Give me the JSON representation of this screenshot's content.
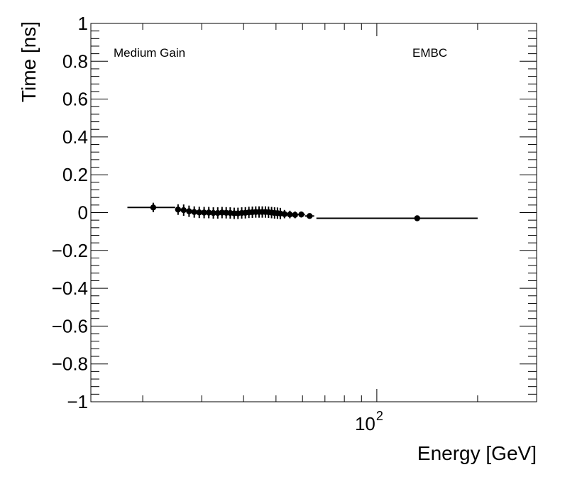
{
  "chart_data": {
    "type": "scatter",
    "title": "",
    "xlabel": "Energy [GeV]",
    "ylabel": "Time [ns]",
    "xscale": "log",
    "xlim": [
      14,
      300
    ],
    "ylim": [
      -1,
      1
    ],
    "y_ticks": [
      1,
      0.8,
      0.6,
      0.4,
      0.2,
      0,
      -0.2,
      -0.4,
      -0.6,
      -0.8,
      -1
    ],
    "y_tick_labels": [
      "1",
      "0.8",
      "0.6",
      "0.4",
      "0.2",
      "0",
      "−0.2",
      "−0.4",
      "−0.6",
      "−0.8",
      "−1"
    ],
    "x_tick_labels": [
      {
        "value": 100,
        "base": "10",
        "exponent": "2"
      }
    ],
    "annotations": {
      "left": "Medium Gain",
      "right": "EMBC"
    },
    "marker_color": "#000000",
    "points": [
      {
        "x": 21.5,
        "y": 0.027,
        "xlo": 18.0,
        "xhi": 25.0,
        "yerr": 0.025
      },
      {
        "x": 25.5,
        "y": 0.016,
        "xlo": 25.0,
        "xhi": 26.0,
        "yerr": 0.028
      },
      {
        "x": 26.5,
        "y": 0.013,
        "xlo": 26.0,
        "xhi": 27.0,
        "yerr": 0.03
      },
      {
        "x": 27.5,
        "y": 0.007,
        "xlo": 27.0,
        "xhi": 28.0,
        "yerr": 0.03
      },
      {
        "x": 28.5,
        "y": 0.003,
        "xlo": 28.0,
        "xhi": 29.0,
        "yerr": 0.03
      },
      {
        "x": 29.5,
        "y": 0.001,
        "xlo": 29.0,
        "xhi": 30.0,
        "yerr": 0.03
      },
      {
        "x": 30.5,
        "y": 0.0,
        "xlo": 30.0,
        "xhi": 31.0,
        "yerr": 0.03
      },
      {
        "x": 31.5,
        "y": 0.0,
        "xlo": 31.0,
        "xhi": 32.0,
        "yerr": 0.03
      },
      {
        "x": 32.5,
        "y": -0.002,
        "xlo": 32.0,
        "xhi": 33.0,
        "yerr": 0.03
      },
      {
        "x": 33.5,
        "y": -0.002,
        "xlo": 33.0,
        "xhi": 34.0,
        "yerr": 0.03
      },
      {
        "x": 34.5,
        "y": 0.0,
        "xlo": 34.0,
        "xhi": 35.0,
        "yerr": 0.03
      },
      {
        "x": 35.5,
        "y": -0.001,
        "xlo": 35.0,
        "xhi": 36.0,
        "yerr": 0.03
      },
      {
        "x": 36.5,
        "y": -0.002,
        "xlo": 36.0,
        "xhi": 37.0,
        "yerr": 0.03
      },
      {
        "x": 37.5,
        "y": -0.004,
        "xlo": 37.0,
        "xhi": 38.0,
        "yerr": 0.03
      },
      {
        "x": 38.5,
        "y": -0.004,
        "xlo": 38.0,
        "xhi": 39.0,
        "yerr": 0.03
      },
      {
        "x": 39.5,
        "y": -0.002,
        "xlo": 39.0,
        "xhi": 40.0,
        "yerr": 0.03
      },
      {
        "x": 40.5,
        "y": -0.001,
        "xlo": 40.0,
        "xhi": 41.0,
        "yerr": 0.03
      },
      {
        "x": 41.5,
        "y": 0.001,
        "xlo": 41.0,
        "xhi": 42.0,
        "yerr": 0.03
      },
      {
        "x": 42.5,
        "y": 0.002,
        "xlo": 42.0,
        "xhi": 43.0,
        "yerr": 0.03
      },
      {
        "x": 43.5,
        "y": 0.003,
        "xlo": 43.0,
        "xhi": 44.0,
        "yerr": 0.03
      },
      {
        "x": 44.5,
        "y": 0.003,
        "xlo": 44.0,
        "xhi": 45.0,
        "yerr": 0.03
      },
      {
        "x": 45.5,
        "y": 0.003,
        "xlo": 45.0,
        "xhi": 46.0,
        "yerr": 0.03
      },
      {
        "x": 46.5,
        "y": 0.003,
        "xlo": 46.0,
        "xhi": 47.0,
        "yerr": 0.03
      },
      {
        "x": 47.5,
        "y": 0.002,
        "xlo": 47.0,
        "xhi": 48.0,
        "yerr": 0.03
      },
      {
        "x": 48.5,
        "y": 0.0,
        "xlo": 48.0,
        "xhi": 49.0,
        "yerr": 0.03
      },
      {
        "x": 49.5,
        "y": -0.002,
        "xlo": 49.0,
        "xhi": 50.0,
        "yerr": 0.03
      },
      {
        "x": 50.5,
        "y": -0.003,
        "xlo": 50.0,
        "xhi": 51.0,
        "yerr": 0.03
      },
      {
        "x": 51.5,
        "y": -0.005,
        "xlo": 51.0,
        "xhi": 52.0,
        "yerr": 0.03
      },
      {
        "x": 53.0,
        "y": -0.008,
        "xlo": 52.0,
        "xhi": 54.0,
        "yerr": 0.022
      },
      {
        "x": 55.0,
        "y": -0.01,
        "xlo": 54.0,
        "xhi": 56.0,
        "yerr": 0.02
      },
      {
        "x": 57.0,
        "y": -0.012,
        "xlo": 56.0,
        "xhi": 58.0,
        "yerr": 0.018
      },
      {
        "x": 59.5,
        "y": -0.01,
        "xlo": 58.0,
        "xhi": 61.0,
        "yerr": 0.016
      },
      {
        "x": 63.0,
        "y": -0.018,
        "xlo": 61.0,
        "xhi": 65.0,
        "yerr": 0.014
      },
      {
        "x": 132,
        "y": -0.03,
        "xlo": 66.0,
        "xhi": 200.0,
        "yerr": 0.006
      }
    ]
  }
}
